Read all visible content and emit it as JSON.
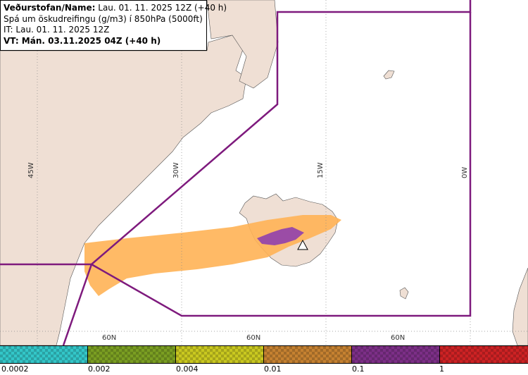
{
  "header": {
    "line1_bold": "Veðurstofan/Name:",
    "line1_rest": " Lau. 01. 11. 2025 12Z (+40 h)",
    "line2": "Spá um öskudreifingu (g/m3) í 850hPa (5000ft)",
    "line3": "IT: Lau. 01. 11. 2025 12Z",
    "line4": "VT: Mán. 03.11.2025 04Z (+40 h)"
  },
  "grid_labels": {
    "lon_45w": "45W",
    "lon_30w": "30W",
    "lon_15w": "15W",
    "lon_0w": "0W",
    "lat_a": "60N",
    "lat_b": "60N",
    "lat_c": "60N"
  },
  "legend": {
    "labels": [
      "0.0002",
      "0.002",
      "0.004",
      "0.01",
      "0.1",
      "1"
    ],
    "colors": [
      "#33c6c8",
      "#7a9e22",
      "#c9c820",
      "#c58131",
      "#7c2f87",
      "#cd2224"
    ]
  },
  "colors": {
    "land": "#efdfd4",
    "ocean": "#ffffff",
    "fir_boundary": "#7e1a7d",
    "ash_low": "#ffb255",
    "ash_mid": "#9b4ca6"
  }
}
